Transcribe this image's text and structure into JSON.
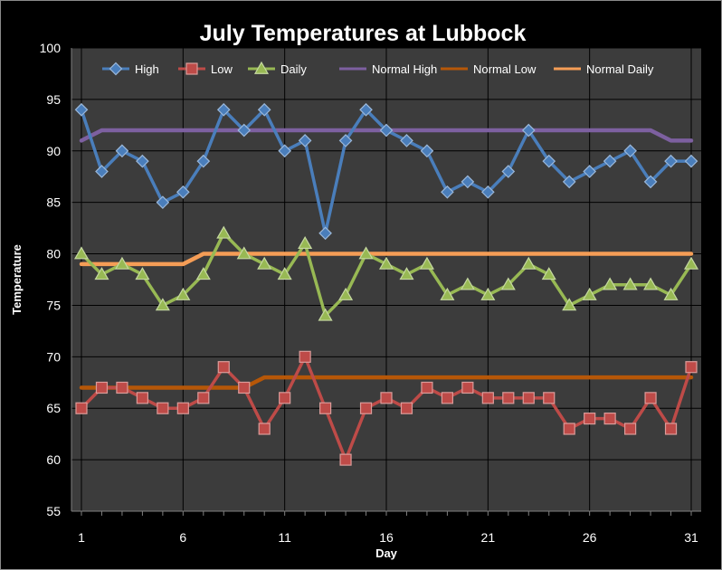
{
  "chart_data": {
    "type": "line",
    "title": "July Temperatures at Lubbock",
    "xlabel": "Day",
    "ylabel": "Temperature",
    "ylim": [
      55,
      100
    ],
    "yticks": [
      55,
      60,
      65,
      70,
      75,
      80,
      85,
      90,
      95,
      100
    ],
    "xlim": [
      1,
      31
    ],
    "xticks": [
      1,
      6,
      11,
      16,
      21,
      26,
      31
    ],
    "grid": true,
    "legend_position": "top",
    "x": [
      1,
      2,
      3,
      4,
      5,
      6,
      7,
      8,
      9,
      10,
      11,
      12,
      13,
      14,
      15,
      16,
      17,
      18,
      19,
      20,
      21,
      22,
      23,
      24,
      25,
      26,
      27,
      28,
      29,
      30,
      31
    ],
    "series": [
      {
        "name": "High",
        "color": "#4a7ebb",
        "marker": "diamond",
        "values": [
          94,
          88,
          90,
          89,
          85,
          86,
          89,
          94,
          92,
          94,
          90,
          91,
          82,
          91,
          94,
          92,
          91,
          90,
          86,
          87,
          86,
          88,
          92,
          89,
          87,
          88,
          89,
          90,
          87,
          89,
          89
        ]
      },
      {
        "name": "Low",
        "color": "#be4b48",
        "marker": "square",
        "values": [
          65,
          67,
          67,
          66,
          65,
          65,
          66,
          69,
          67,
          63,
          66,
          70,
          65,
          60,
          65,
          66,
          65,
          67,
          66,
          67,
          66,
          66,
          66,
          66,
          63,
          64,
          64,
          63,
          66,
          63,
          69
        ]
      },
      {
        "name": "Daily",
        "color": "#98b954",
        "marker": "triangle",
        "values": [
          80,
          78,
          79,
          78,
          75,
          76,
          78,
          82,
          80,
          79,
          78,
          81,
          74,
          76,
          80,
          79,
          78,
          79,
          76,
          77,
          76,
          77,
          79,
          78,
          75,
          76,
          77,
          77,
          77,
          76,
          79
        ]
      },
      {
        "name": "Normal High",
        "color": "#7d60a0",
        "marker": "none",
        "values": [
          91,
          92,
          92,
          92,
          92,
          92,
          92,
          92,
          92,
          92,
          92,
          92,
          92,
          92,
          92,
          92,
          92,
          92,
          92,
          92,
          92,
          92,
          92,
          92,
          92,
          92,
          92,
          92,
          92,
          91,
          91
        ]
      },
      {
        "name": "Normal Low",
        "color": "#b65708",
        "marker": "none",
        "values": [
          67,
          67,
          67,
          67,
          67,
          67,
          67,
          67,
          67,
          68,
          68,
          68,
          68,
          68,
          68,
          68,
          68,
          68,
          68,
          68,
          68,
          68,
          68,
          68,
          68,
          68,
          68,
          68,
          68,
          68,
          68
        ]
      },
      {
        "name": "Normal Daily",
        "color": "#f59d56",
        "marker": "none",
        "values": [
          79,
          79,
          79,
          79,
          79,
          79,
          80,
          80,
          80,
          80,
          80,
          80,
          80,
          80,
          80,
          80,
          80,
          80,
          80,
          80,
          80,
          80,
          80,
          80,
          80,
          80,
          80,
          80,
          80,
          80,
          80
        ]
      }
    ],
    "colors": {
      "background": "#000000",
      "plot_area": "#3c3c3c",
      "grid": "#000000",
      "text": "#ffffff"
    }
  }
}
